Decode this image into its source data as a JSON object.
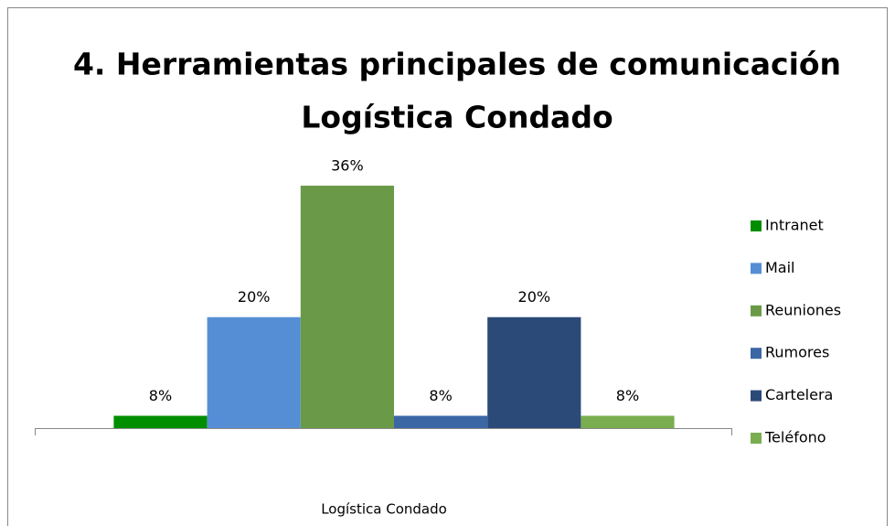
{
  "chart_data": {
    "type": "bar",
    "title": "4. Herramientas principales de comunicación",
    "subtitle": "Logística Condado",
    "categories": [
      "Logística Condado"
    ],
    "ylim": [
      6.5,
      40
    ],
    "series": [
      {
        "name": "Intranet",
        "color": "#008e00",
        "values": [
          8
        ],
        "value_labels": [
          "8%"
        ]
      },
      {
        "name": "Mail",
        "color": "#558ed5",
        "values": [
          20
        ],
        "value_labels": [
          "20%"
        ]
      },
      {
        "name": "Reuniones",
        "color": "#6a9a47",
        "values": [
          36
        ],
        "value_labels": [
          "36%"
        ]
      },
      {
        "name": "Rumores",
        "color": "#3b67a5",
        "values": [
          8
        ],
        "value_labels": [
          "8%"
        ]
      },
      {
        "name": "Cartelera",
        "color": "#2b4a78",
        "values": [
          20
        ],
        "value_labels": [
          "20%"
        ]
      },
      {
        "name": "Teléfono",
        "color": "#79ad4f",
        "values": [
          8
        ],
        "value_labels": [
          "8%"
        ]
      }
    ]
  }
}
